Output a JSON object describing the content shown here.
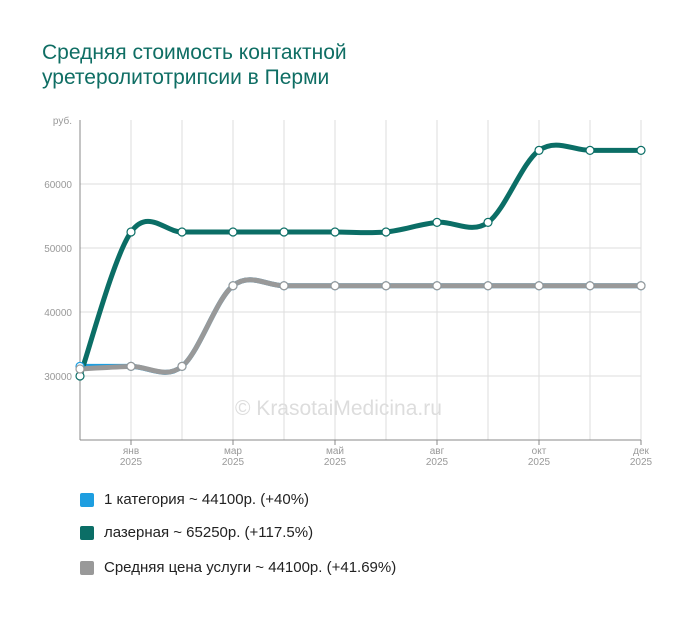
{
  "chart_data": {
    "type": "line",
    "title": "Средняя стоимость контактной уретеролитотрипсии в Перми",
    "ylabel": "руб.",
    "ylim": [
      20000,
      70000
    ],
    "yticks": [
      "30000",
      "40000",
      "50000",
      "60000"
    ],
    "ytick_values": [
      30000,
      40000,
      50000,
      60000
    ],
    "xticks": [
      {
        "month": "янв",
        "year": "2025",
        "index": 1
      },
      {
        "month": "мар",
        "year": "2025",
        "index": 3
      },
      {
        "month": "май",
        "year": "2025",
        "index": 5
      },
      {
        "month": "авг",
        "year": "2025",
        "index": 7
      },
      {
        "month": "окт",
        "year": "2025",
        "index": 9
      },
      {
        "month": "дек",
        "year": "2025",
        "index": 11
      }
    ],
    "grid": true,
    "legend_position": "bottom",
    "series": [
      {
        "name": "1 категория",
        "legend": "1 категория ~ 44100р. (+40%)",
        "color": "#1e9ee0",
        "values": [
          31500,
          31500,
          31500,
          44100,
          44100,
          44100,
          44100,
          44100,
          44100,
          44100,
          44100,
          44100
        ]
      },
      {
        "name": "лазерная",
        "legend": "лазерная ~ 65250р. (+117.5%)",
        "color": "#0b6e66",
        "values": [
          30000,
          52500,
          52500,
          52500,
          52500,
          52500,
          52500,
          54000,
          54000,
          65250,
          65250,
          65250
        ]
      },
      {
        "name": "Средняя цена услуги",
        "legend": "Средняя цена услуги ~ 44100р. (+41.69%)",
        "color": "#999999",
        "values": [
          31100,
          31500,
          31500,
          44100,
          44100,
          44100,
          44100,
          44100,
          44100,
          44100,
          44100,
          44100
        ]
      }
    ]
  },
  "watermark": "© KrasotaiMedicina.ru"
}
